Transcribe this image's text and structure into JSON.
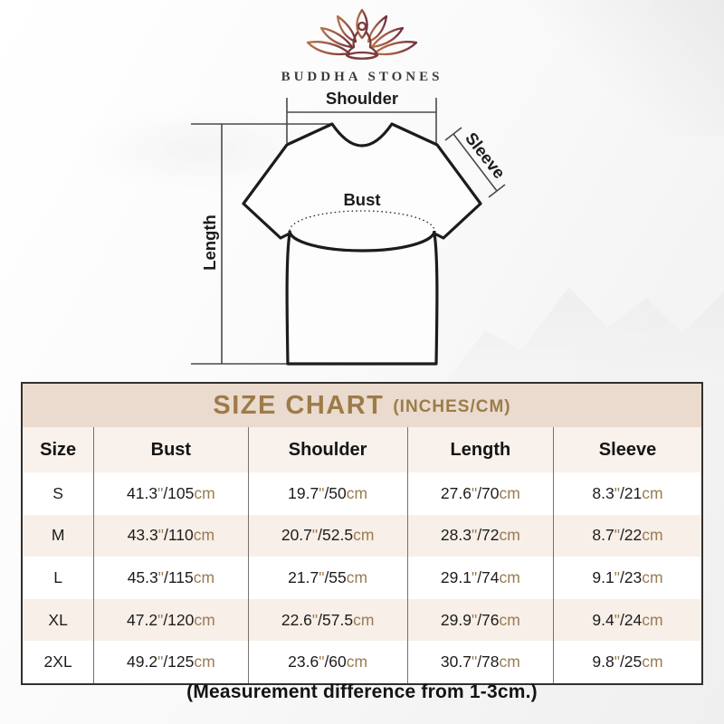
{
  "brand": {
    "name": "BUDDHA STONES",
    "logo_icon": "lotus-meditation-icon"
  },
  "diagram": {
    "shoulder_label": "Shoulder",
    "sleeve_label": "Sleeve",
    "bust_label": "Bust",
    "length_label": "Length"
  },
  "chart_data": {
    "type": "table",
    "title": "SIZE CHART",
    "subtitle": "(INCHES/CM)",
    "unit_inch": "\"",
    "unit_cm": "cm",
    "columns": [
      "Size",
      "Bust",
      "Shoulder",
      "Length",
      "Sleeve"
    ],
    "rows": [
      {
        "size": "S",
        "bust": {
          "in": "41.3",
          "cm": "105"
        },
        "shoulder": {
          "in": "19.7",
          "cm": "50"
        },
        "length": {
          "in": "27.6",
          "cm": "70"
        },
        "sleeve": {
          "in": "8.3",
          "cm": "21"
        }
      },
      {
        "size": "M",
        "bust": {
          "in": "43.3",
          "cm": "110"
        },
        "shoulder": {
          "in": "20.7",
          "cm": "52.5"
        },
        "length": {
          "in": "28.3",
          "cm": "72"
        },
        "sleeve": {
          "in": "8.7",
          "cm": "22"
        }
      },
      {
        "size": "L",
        "bust": {
          "in": "45.3",
          "cm": "115"
        },
        "shoulder": {
          "in": "21.7",
          "cm": "55"
        },
        "length": {
          "in": "29.1",
          "cm": "74"
        },
        "sleeve": {
          "in": "9.1",
          "cm": "23"
        }
      },
      {
        "size": "XL",
        "bust": {
          "in": "47.2",
          "cm": "120"
        },
        "shoulder": {
          "in": "22.6",
          "cm": "57.5"
        },
        "length": {
          "in": "29.9",
          "cm": "76"
        },
        "sleeve": {
          "in": "9.4",
          "cm": "24"
        }
      },
      {
        "size": "2XL",
        "bust": {
          "in": "49.2",
          "cm": "125"
        },
        "shoulder": {
          "in": "23.6",
          "cm": "60"
        },
        "length": {
          "in": "30.7",
          "cm": "78"
        },
        "sleeve": {
          "in": "9.8",
          "cm": "25"
        }
      }
    ]
  },
  "footer_note": "(Measurement difference from 1-3cm.)",
  "colors": {
    "title_band_bg": "#eadbce",
    "title_text": "#9d7b49",
    "header_row_bg": "#f8f1ec",
    "alt_row_bg": "#f7efe8",
    "unit_text": "#9b7c52",
    "table_border": "#332f2c",
    "logo_gradient_start": "#b5724a",
    "logo_gradient_end": "#6d2f3d"
  }
}
